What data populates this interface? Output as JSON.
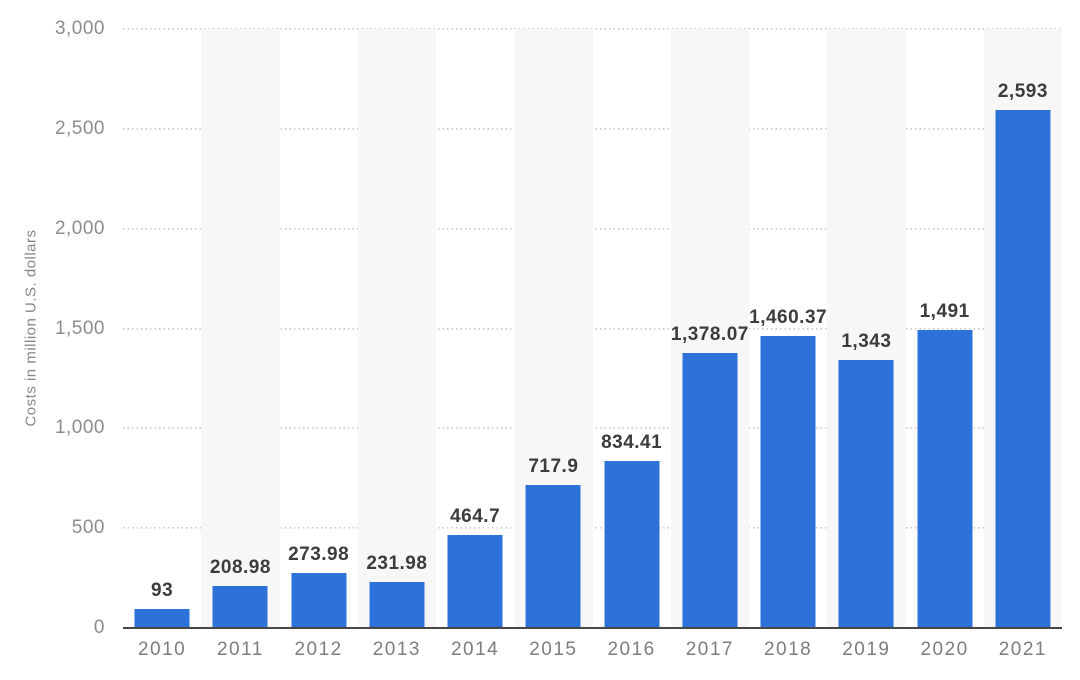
{
  "chart_data": {
    "type": "bar",
    "title": "",
    "xlabel": "",
    "ylabel": "Costs in million U.S. dollars",
    "categories": [
      "2010",
      "2011",
      "2012",
      "2013",
      "2014",
      "2015",
      "2016",
      "2017",
      "2018",
      "2019",
      "2020",
      "2021"
    ],
    "values": [
      93,
      208.98,
      273.98,
      231.98,
      464.7,
      717.9,
      834.41,
      1378.07,
      1460.37,
      1343,
      1491,
      2593
    ],
    "value_labels": [
      "93",
      "208.98",
      "273.98",
      "231.98",
      "464.7",
      "717.9",
      "834.41",
      "1,378.07",
      "1,460.37",
      "1,343",
      "1,491",
      "2,593"
    ],
    "ylim": [
      0,
      3000
    ],
    "ytick_values": [
      0,
      500,
      1000,
      1500,
      2000,
      2500,
      3000
    ],
    "ytick_labels": [
      "0",
      "500",
      "1,000",
      "1,500",
      "2,000",
      "2,500",
      "3,000"
    ],
    "grid": "horizontal-dotted",
    "legend": "none",
    "band_pattern": "alternating-columns",
    "colors": {
      "bar": "#2d72d8",
      "value_label": "#3c3c3c",
      "ytick_label": "#8c8c8c",
      "xtick_label": "#7d7d7d",
      "axis_title": "#878787",
      "gridline": "#cacaca",
      "baseline": "#474747",
      "column_band": "#f7f7f7",
      "background": "#ffffff"
    }
  }
}
